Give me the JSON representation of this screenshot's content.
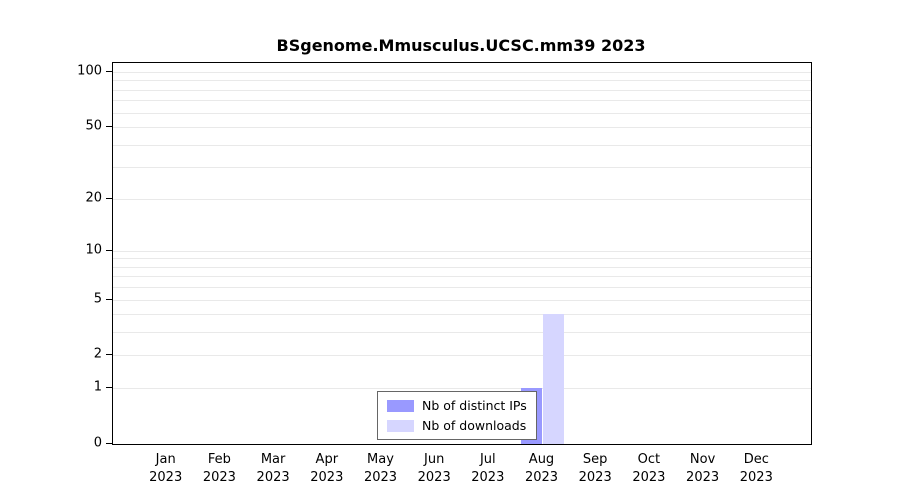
{
  "chart_data": {
    "type": "bar",
    "title": "BSgenome.Mmusculus.UCSC.mm39 2023",
    "categories": [
      "Jan",
      "Feb",
      "Mar",
      "Apr",
      "May",
      "Jun",
      "Jul",
      "Aug",
      "Sep",
      "Oct",
      "Nov",
      "Dec"
    ],
    "x_year_label": "2023",
    "series": [
      {
        "name": "Nb of distinct IPs",
        "color": "#9999ff",
        "values": [
          0,
          0,
          0,
          0,
          0,
          0,
          0,
          1,
          0,
          0,
          0,
          0
        ]
      },
      {
        "name": "Nb of downloads",
        "color": "#d6d6ff",
        "values": [
          0,
          0,
          0,
          0,
          0,
          0,
          0,
          4,
          0,
          0,
          0,
          0
        ]
      }
    ],
    "xlabel": "",
    "ylabel": "",
    "ylim": [
      0,
      100
    ],
    "yticks": [
      0,
      1,
      2,
      5,
      10,
      20,
      50,
      100
    ],
    "minor_gridlines": [
      1,
      2,
      3,
      4,
      5,
      6,
      7,
      8,
      9,
      10,
      20,
      30,
      40,
      50,
      60,
      70,
      80,
      90,
      100
    ],
    "y_scale": "log10(1+x)",
    "grid": true,
    "legend_position": "bottom-inside",
    "axis_color": "#000000",
    "gridline_color": "#e9e9e9"
  }
}
